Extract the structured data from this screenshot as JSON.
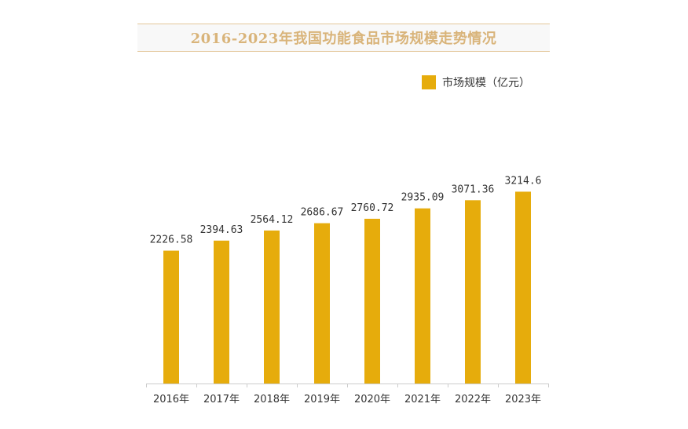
{
  "chart_data": {
    "type": "bar",
    "title": "2016-2023年我国功能食品市场规模走势情况",
    "categories": [
      "2016年",
      "2017年",
      "2018年",
      "2019年",
      "2020年",
      "2021年",
      "2022年",
      "2023年"
    ],
    "series": [
      {
        "name": "市场规模（亿元）",
        "values": [
          2226.58,
          2394.63,
          2564.12,
          2686.67,
          2760.72,
          2935.09,
          3071.36,
          3214.6
        ],
        "labels": [
          "2226.58",
          "2394.63",
          "2564.12",
          "2686.67",
          "2760.72",
          "2935.09",
          "3071.36",
          "3214.6"
        ]
      }
    ],
    "ylim": [
      0,
      4600
    ],
    "grid": false,
    "legend_position": "top-right",
    "colors": {
      "bar": "#e6ac0c",
      "title": "#d9b47a",
      "axis": "#cccccc"
    }
  }
}
